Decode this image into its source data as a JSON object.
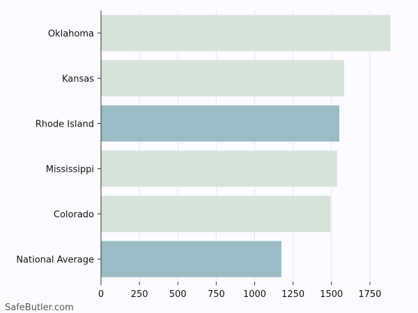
{
  "chart_data": {
    "type": "bar",
    "orientation": "horizontal",
    "title": "",
    "xlabel": "",
    "ylabel": "",
    "categories": [
      "Oklahoma",
      "Kansas",
      "Rhode Island",
      "Mississippi",
      "Colorado",
      "National Average"
    ],
    "values": [
      1884,
      1583,
      1551,
      1537,
      1494,
      1174
    ],
    "xlim": [
      0,
      1950
    ],
    "xticks": [
      0,
      250,
      500,
      750,
      1000,
      1250,
      1500,
      1750
    ],
    "grid": true,
    "colors": [
      "#d5e3da",
      "#d5e3da",
      "#99bcc5",
      "#d5e3da",
      "#d5e3da",
      "#99bcc5"
    ]
  },
  "watermark": "SafeButler.com",
  "colors": {
    "background": "#fcfbff",
    "grid": "#e6e6ea",
    "axis": "#333333"
  }
}
